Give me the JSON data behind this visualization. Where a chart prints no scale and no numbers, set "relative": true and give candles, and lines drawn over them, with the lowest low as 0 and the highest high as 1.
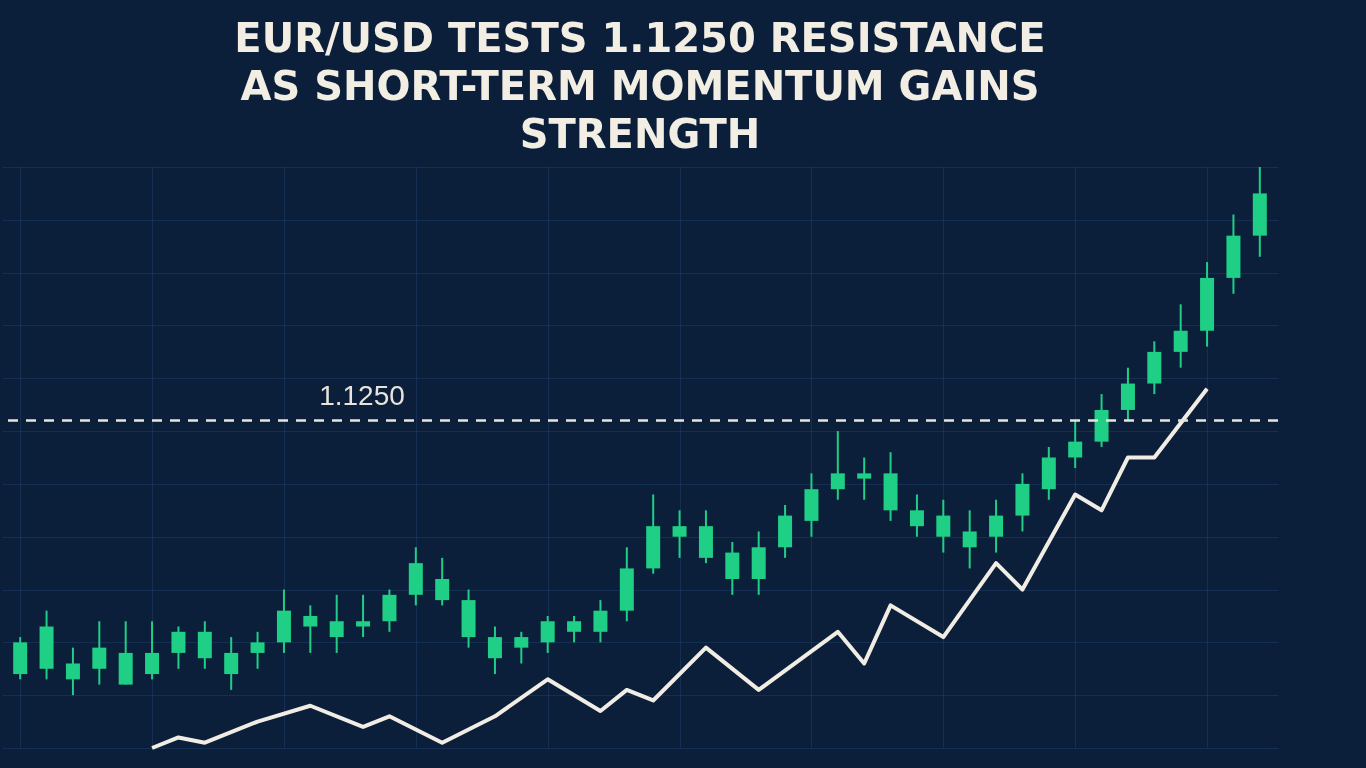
{
  "chart_data": {
    "type": "candlestick",
    "title": "EUR/USD TESTS 1.1250 RESISTANCE\nAS SHORT-TERM MOMENTUM GAINS\nSTRENGTH",
    "relative": true,
    "grid": true,
    "color": "#1fcf85",
    "categories": [
      null,
      null,
      null,
      null,
      null,
      null,
      null,
      null,
      null,
      null,
      null,
      null,
      null,
      null,
      null,
      null,
      null,
      null,
      null,
      null,
      null,
      null,
      null,
      null,
      null,
      null,
      null,
      null,
      null,
      null,
      null,
      null,
      null,
      null,
      null,
      null,
      null,
      null,
      null,
      null,
      null,
      null,
      null,
      null,
      null,
      null,
      null,
      null
    ],
    "ohlc": [
      [
        0.04,
        0.11,
        0.03,
        0.1
      ],
      [
        0.05,
        0.16,
        0.03,
        0.13
      ],
      [
        0.03,
        0.09,
        0,
        0.06
      ],
      [
        0.05,
        0.14,
        0.02,
        0.09
      ],
      [
        0.02,
        0.14,
        0.02,
        0.08
      ],
      [
        0.04,
        0.14,
        0.03,
        0.08
      ],
      [
        0.08,
        0.13,
        0.05,
        0.12
      ],
      [
        0.07,
        0.14,
        0.05,
        0.12
      ],
      [
        0.04,
        0.11,
        0.01,
        0.08
      ],
      [
        0.08,
        0.12,
        0.05,
        0.1
      ],
      [
        0.1,
        0.2,
        0.08,
        0.16
      ],
      [
        0.13,
        0.17,
        0.08,
        0.15
      ],
      [
        0.11,
        0.19,
        0.08,
        0.14
      ],
      [
        0.13,
        0.19,
        0.11,
        0.14
      ],
      [
        0.14,
        0.2,
        0.12,
        0.19
      ],
      [
        0.19,
        0.28,
        0.17,
        0.25
      ],
      [
        0.18,
        0.26,
        0.17,
        0.22
      ],
      [
        0.11,
        0.2,
        0.09,
        0.18
      ],
      [
        0.07,
        0.13,
        0.04,
        0.11
      ],
      [
        0.09,
        0.12,
        0.06,
        0.11
      ],
      [
        0.1,
        0.15,
        0.08,
        0.14
      ],
      [
        0.12,
        0.15,
        0.1,
        0.14
      ],
      [
        0.12,
        0.18,
        0.1,
        0.16
      ],
      [
        0.16,
        0.28,
        0.14,
        0.24
      ],
      [
        0.24,
        0.38,
        0.23,
        0.32
      ],
      [
        0.3,
        0.35,
        0.26,
        0.32
      ],
      [
        0.26,
        0.35,
        0.25,
        0.32
      ],
      [
        0.22,
        0.29,
        0.19,
        0.27
      ],
      [
        0.22,
        0.31,
        0.19,
        0.28
      ],
      [
        0.28,
        0.36,
        0.26,
        0.34
      ],
      [
        0.33,
        0.42,
        0.3,
        0.39
      ],
      [
        0.39,
        0.5,
        0.37,
        0.42
      ],
      [
        0.41,
        0.45,
        0.37,
        0.42
      ],
      [
        0.35,
        0.46,
        0.33,
        0.42
      ],
      [
        0.32,
        0.38,
        0.3,
        0.35
      ],
      [
        0.3,
        0.37,
        0.27,
        0.34
      ],
      [
        0.28,
        0.35,
        0.24,
        0.31
      ],
      [
        0.3,
        0.37,
        0.27,
        0.34
      ],
      [
        0.34,
        0.42,
        0.31,
        0.4
      ],
      [
        0.39,
        0.47,
        0.37,
        0.45
      ],
      [
        0.45,
        0.52,
        0.43,
        0.48
      ],
      [
        0.48,
        0.57,
        0.47,
        0.54
      ],
      [
        0.54,
        0.62,
        0.52,
        0.59
      ],
      [
        0.59,
        0.67,
        0.57,
        0.65
      ],
      [
        0.65,
        0.74,
        0.62,
        0.69
      ],
      [
        0.69,
        0.82,
        0.66,
        0.79
      ],
      [
        0.79,
        0.91,
        0.76,
        0.87
      ],
      [
        0.87,
        1,
        0.83,
        0.95
      ]
    ],
    "series": [
      {
        "type": "line",
        "color": "#f2ede4",
        "values": [
          null,
          null,
          null,
          null,
          null,
          -0.1,
          -0.08,
          -0.09,
          null,
          -0.05,
          null,
          -0.02,
          null,
          -0.06,
          -0.04,
          null,
          -0.09,
          null,
          -0.04,
          null,
          0.03,
          null,
          -0.03,
          0.01,
          -0.01,
          null,
          0.09,
          null,
          0.01,
          null,
          null,
          0.12,
          0.06,
          0.17,
          null,
          0.11,
          null,
          0.25,
          0.2,
          null,
          0.38,
          0.35,
          0.45,
          0.45,
          null,
          0.58,
          null,
          null
        ]
      }
    ],
    "annotations": [
      "1.1250"
    ],
    "ref_lines": [
      {
        "axis": "y",
        "value": 0.52,
        "color": "#e8e4dc",
        "line_style": "dashed"
      }
    ]
  }
}
